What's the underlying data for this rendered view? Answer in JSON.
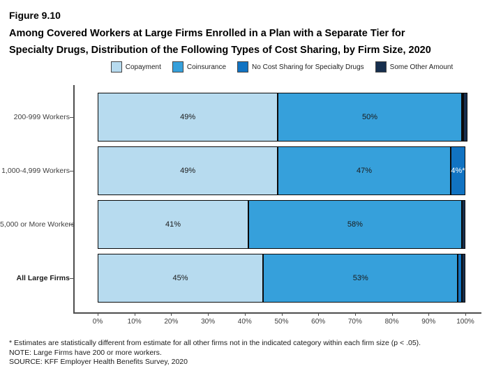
{
  "figure": {
    "label": "Figure 9.10",
    "title_line1": "Among Covered Workers at Large Firms Enrolled in a Plan with a Separate Tier for",
    "title_line2": "Specialty Drugs, Distribution of the Following Types of Cost Sharing, by Firm Size, 2020"
  },
  "legend": [
    {
      "label": "Copayment",
      "color": "#B7DBEF"
    },
    {
      "label": "Coinsurance",
      "color": "#36A0DB"
    },
    {
      "label": "No Cost Sharing for Specialty Drugs",
      "color": "#1173C2"
    },
    {
      "label": "Some Other Amount",
      "color": "#172F4E"
    }
  ],
  "chart_data": {
    "type": "bar",
    "orientation": "horizontal",
    "stacked": true,
    "title": "Among Covered Workers at Large Firms Enrolled in a Plan with a Separate Tier for Specialty Drugs, Distribution of the Following Types of Cost Sharing, by Firm Size, 2020",
    "categories": [
      "200-999 Workers",
      "1,000-4,999 Workers",
      "5,000 or More Workers",
      "All Large Firms"
    ],
    "bold_categories": [
      "All Large Firms"
    ],
    "series": [
      {
        "name": "Copayment",
        "color": "#B7DBEF",
        "label_color": "#1a1a1a",
        "values": [
          49,
          49,
          41,
          45
        ],
        "labels": [
          "49%",
          "49%",
          "41%",
          "45%"
        ]
      },
      {
        "name": "Coinsurance",
        "color": "#36A0DB",
        "label_color": "#1a1a1a",
        "values": [
          50,
          47,
          58,
          53
        ],
        "labels": [
          "50%",
          "47%",
          "58%",
          "53%"
        ]
      },
      {
        "name": "No Cost Sharing for Specialty Drugs",
        "color": "#1173C2",
        "label_color": "#ffffff",
        "values": [
          0.5,
          4,
          0,
          1
        ],
        "labels": [
          "",
          "4%*",
          "",
          ""
        ]
      },
      {
        "name": "Some Other Amount",
        "color": "#172F4E",
        "label_color": "#ffffff",
        "values": [
          1,
          0,
          1,
          1
        ],
        "labels": [
          "",
          "",
          "",
          ""
        ]
      }
    ],
    "x_ticks": [
      "0%",
      "10%",
      "20%",
      "30%",
      "40%",
      "50%",
      "60%",
      "70%",
      "80%",
      "90%",
      "100%"
    ],
    "xlim": [
      0,
      100
    ],
    "grid": false,
    "legend_position": "top"
  },
  "footnotes": [
    "* Estimates are statistically different from estimate for all other firms not in the indicated category within each firm size (p < .05).",
    "NOTE: Large Firms have 200 or more workers.",
    "SOURCE: KFF Employer Health Benefits Survey, 2020"
  ]
}
